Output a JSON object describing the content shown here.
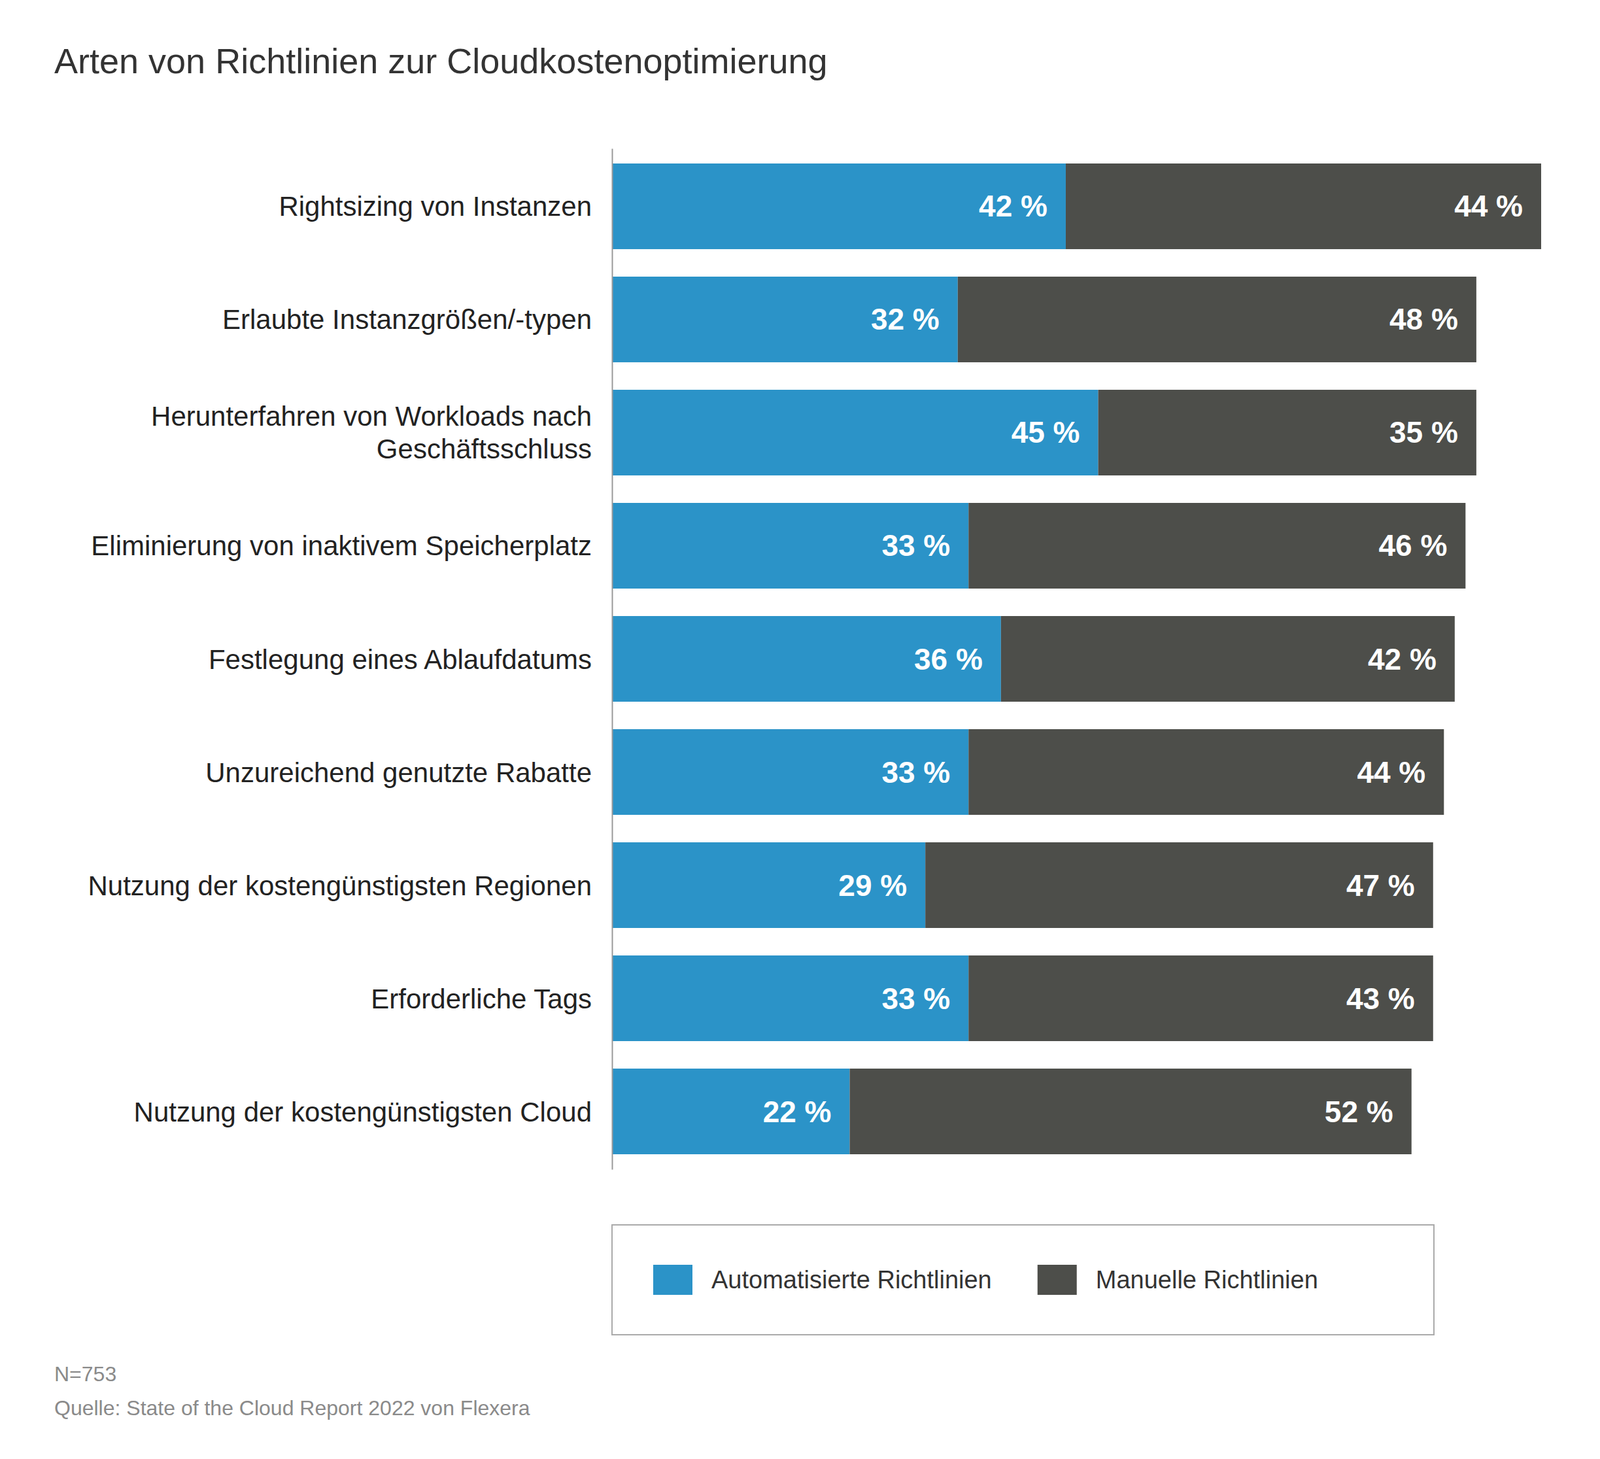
{
  "chart_data": {
    "type": "bar",
    "orientation": "horizontal",
    "stacked": true,
    "data_labels": true,
    "tick_labels": "y",
    "grid": false,
    "legend": "bottom",
    "title": "Arten von Richtlinien zur Cloudkostenoptimierung",
    "categories": [
      "Rightsizing von Instanzen",
      "Erlaubte Instanzgrößen/-typen",
      "Herunterfahren von Workloads nach Geschäftsschluss",
      "Eliminierung von inaktivem Speicherplatz",
      "Festlegung eines Ablaufdatums",
      "Unzureichend genutzte Rabatte",
      "Nutzung der kostengünstigsten Regionen",
      "Erforderliche Tags",
      "Nutzung der kostengünstigsten Cloud"
    ],
    "series": [
      {
        "name": "Automatisierte Richtlinien",
        "color": "#2b93c8",
        "values": [
          42,
          32,
          45,
          33,
          36,
          33,
          29,
          33,
          22
        ],
        "value_labels": [
          "42 %",
          "32 %",
          "45 %",
          "33 %",
          "36 %",
          "33 %",
          "29 %",
          "33 %",
          "22 %"
        ]
      },
      {
        "name": "Manuelle Richtlinien",
        "color": "#4d4e4a",
        "values": [
          44,
          48,
          35,
          46,
          42,
          44,
          47,
          43,
          52
        ],
        "value_labels": [
          "44 %",
          "48 %",
          "35 %",
          "46 %",
          "42 %",
          "44 %",
          "47 %",
          "43 %",
          "52 %"
        ]
      }
    ],
    "xlim": [
      0,
      86
    ],
    "xticks": [],
    "annotations": [
      "N=753",
      "Quelle: State of the Cloud Report 2022 von Flexera"
    ]
  }
}
